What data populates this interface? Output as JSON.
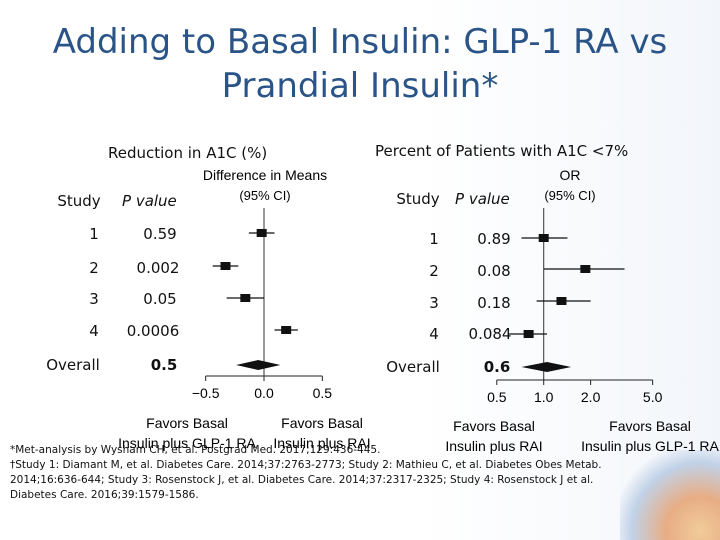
{
  "slide": {
    "title_line1": "Adding to Basal Insulin: GLP-1 RA vs",
    "title_line2": "Prandial Insulin*"
  },
  "left_panel": {
    "heading": "Reduction in A1C (%)",
    "col_study": "Study",
    "col_pvalue": "P value",
    "rows": [
      {
        "study": "1",
        "p": "0.59"
      },
      {
        "study": "2",
        "p": "0.002"
      },
      {
        "study": "3",
        "p": "0.05"
      },
      {
        "study": "4",
        "p": "0.0006"
      },
      {
        "study": "Overall",
        "p": "0.5"
      }
    ]
  },
  "right_panel": {
    "heading": "Percent of Patients with A1C <7%",
    "col_study": "Study",
    "col_pvalue": "P value",
    "rows": [
      {
        "study": "1",
        "p": "0.89"
      },
      {
        "study": "2",
        "p": "0.08"
      },
      {
        "study": "3",
        "p": "0.18"
      },
      {
        "study": "4",
        "p": "0.084"
      },
      {
        "study": "Overall",
        "p": "0.6"
      }
    ]
  },
  "footnotes": {
    "line1": "*Met-analysis by Wysham CH, et al. Postgrad Med. 2017;129:436-445.",
    "line2": "†Study 1: Diamant M, et al. Diabetes Care. 2014;37:2763-2773; Study 2: Mathieu C, et al. Diabetes Obes Metab. 2014;16:636-644; Study 3: Rosenstock J, et al. Diabetes Care. 2014;37:2317-2325; Study 4: Rosenstock J et al. Diabetes Care. 2016;39:1579-1586."
  },
  "chart_data": [
    {
      "type": "forest",
      "title": "Difference in Means",
      "subtitle": "(95% CI)",
      "scale": "linear",
      "xlim": [
        -0.6,
        0.6
      ],
      "ticks": [
        -0.5,
        0.0,
        0.5
      ],
      "tick_labels": [
        "−0.5",
        "0.0",
        "0.5"
      ],
      "reference": 0.0,
      "favors_left": [
        "Favors Basal",
        "Insulin plus GLP-1 RA"
      ],
      "favors_right": [
        "Favors Basal",
        "Insulin plus RAI"
      ],
      "studies": [
        {
          "label": "1",
          "est": -0.02,
          "lo": -0.13,
          "hi": 0.09
        },
        {
          "label": "2",
          "est": -0.33,
          "lo": -0.44,
          "hi": -0.22
        },
        {
          "label": "3",
          "est": -0.16,
          "lo": -0.32,
          "hi": 0.0
        },
        {
          "label": "4",
          "est": 0.19,
          "lo": 0.09,
          "hi": 0.29
        },
        {
          "label": "Overall",
          "est": -0.05,
          "lo": -0.24,
          "hi": 0.14,
          "summary": true
        }
      ]
    },
    {
      "type": "forest",
      "title": "OR",
      "subtitle": "(95% CI)",
      "scale": "log",
      "xlim": [
        0.42,
        6.0
      ],
      "ticks": [
        0.5,
        1.0,
        2.0,
        5.0
      ],
      "tick_labels": [
        "0.5",
        "1.0",
        "2.0",
        "5.0"
      ],
      "reference": 1.0,
      "favors_left": [
        "Favors Basal",
        "Insulin plus RAI"
      ],
      "favors_right": [
        "Favors Basal",
        "Insulin plus GLP-1 RA"
      ],
      "studies": [
        {
          "label": "1",
          "est": 1.0,
          "lo": 0.72,
          "hi": 1.42
        },
        {
          "label": "2",
          "est": 1.85,
          "lo": 1.0,
          "hi": 3.3
        },
        {
          "label": "3",
          "est": 1.3,
          "lo": 0.9,
          "hi": 2.0
        },
        {
          "label": "4",
          "est": 0.8,
          "lo": 0.6,
          "hi": 1.05
        },
        {
          "label": "Overall",
          "est": 1.05,
          "lo": 0.72,
          "hi": 1.5,
          "summary": true
        }
      ]
    }
  ]
}
